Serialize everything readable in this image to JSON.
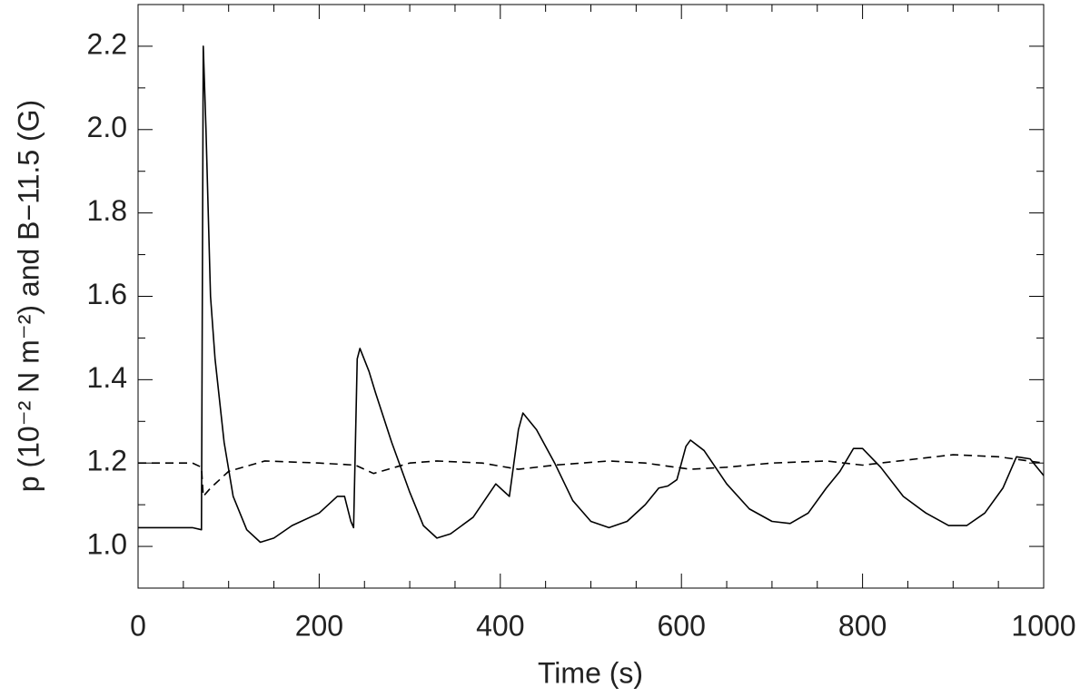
{
  "chart_data": {
    "type": "line",
    "xlabel": "Time (s)",
    "ylabel": "p (10⁻² N m⁻²) and B−11.5 (G)",
    "xlim": [
      0,
      1000
    ],
    "xticks": [
      0,
      200,
      400,
      600,
      800,
      1000
    ],
    "ylim": [
      0.9,
      2.3
    ],
    "yticks": [
      {
        "value": 1,
        "label": "1.0"
      },
      1.2,
      1.4,
      1.6,
      1.8,
      {
        "value": 2,
        "label": "2.0"
      },
      2.2
    ],
    "series": [
      {
        "color": "#000000",
        "line_style": "solid",
        "x": [
          0,
          60,
          70,
          72,
          75,
          80,
          85,
          95,
          105,
          120,
          135,
          150,
          170,
          200,
          220,
          228,
          235,
          238,
          242,
          245,
          255,
          262,
          280,
          300,
          315,
          330,
          345,
          370,
          395,
          405,
          410,
          420,
          425,
          440,
          460,
          480,
          500,
          520,
          540,
          560,
          575,
          585,
          595,
          605,
          610,
          625,
          650,
          675,
          700,
          720,
          740,
          760,
          775,
          790,
          800,
          820,
          845,
          870,
          895,
          915,
          935,
          955,
          970,
          985,
          1000
        ],
        "values": [
          1.045,
          1.045,
          1.04,
          2.2,
          2.0,
          1.6,
          1.45,
          1.25,
          1.12,
          1.04,
          1.01,
          1.02,
          1.05,
          1.08,
          1.12,
          1.12,
          1.06,
          1.045,
          1.45,
          1.475,
          1.42,
          1.37,
          1.25,
          1.13,
          1.05,
          1.02,
          1.03,
          1.07,
          1.15,
          1.13,
          1.12,
          1.28,
          1.32,
          1.28,
          1.2,
          1.11,
          1.06,
          1.045,
          1.06,
          1.1,
          1.14,
          1.145,
          1.16,
          1.24,
          1.255,
          1.23,
          1.15,
          1.09,
          1.06,
          1.055,
          1.08,
          1.14,
          1.18,
          1.235,
          1.235,
          1.19,
          1.12,
          1.08,
          1.05,
          1.05,
          1.08,
          1.14,
          1.215,
          1.21,
          1.17
        ]
      },
      {
        "color": "#000000",
        "line_style": "dashed",
        "x": [
          0,
          60,
          70,
          72,
          80,
          100,
          140,
          200,
          240,
          260,
          300,
          330,
          380,
          420,
          460,
          520,
          560,
          610,
          650,
          700,
          760,
          800,
          840,
          900,
          950,
          1000
        ],
        "values": [
          1.2,
          1.2,
          1.19,
          1.12,
          1.14,
          1.18,
          1.205,
          1.2,
          1.195,
          1.175,
          1.2,
          1.205,
          1.2,
          1.185,
          1.195,
          1.205,
          1.2,
          1.185,
          1.19,
          1.2,
          1.205,
          1.195,
          1.205,
          1.22,
          1.215,
          1.2
        ]
      }
    ]
  }
}
